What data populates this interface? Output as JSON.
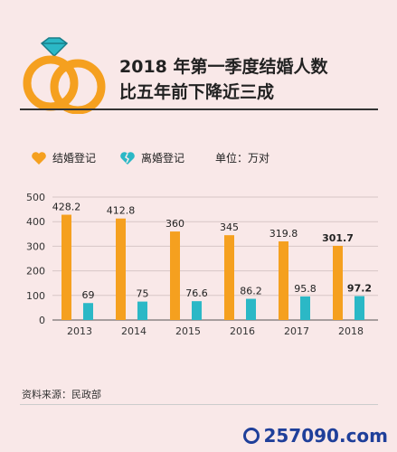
{
  "header": {
    "title_line1": "2018 年第一季度结婚人数",
    "title_line2": "比五年前下降近三成"
  },
  "legend": {
    "marriage": "结婚登记",
    "divorce": "离婚登记",
    "unit": "单位：万对"
  },
  "colors": {
    "marriage": "#f5a01f",
    "divorce": "#2bb8c6",
    "background": "#f9e8e8"
  },
  "chart_data": {
    "type": "bar",
    "categories": [
      "2013",
      "2014",
      "2015",
      "2016",
      "2017",
      "2018"
    ],
    "series": [
      {
        "name": "结婚登记",
        "values": [
          428.2,
          412.8,
          360,
          345,
          319.8,
          301.7
        ]
      },
      {
        "name": "离婚登记",
        "values": [
          69,
          75,
          76.6,
          86.2,
          95.8,
          97.2
        ]
      }
    ],
    "labels_marriage": [
      "428.2",
      "412.8",
      "360",
      "345",
      "319.8",
      "301.7"
    ],
    "labels_divorce": [
      "69",
      "75",
      "76.6",
      "86.2",
      "95.8",
      "97.2"
    ],
    "yticks": [
      "0",
      "100",
      "200",
      "300",
      "400",
      "500"
    ],
    "ylim": [
      0,
      500
    ],
    "grid": true,
    "xlabel": "",
    "ylabel": ""
  },
  "source": "资料来源：民政部",
  "watermark": "257090.com"
}
